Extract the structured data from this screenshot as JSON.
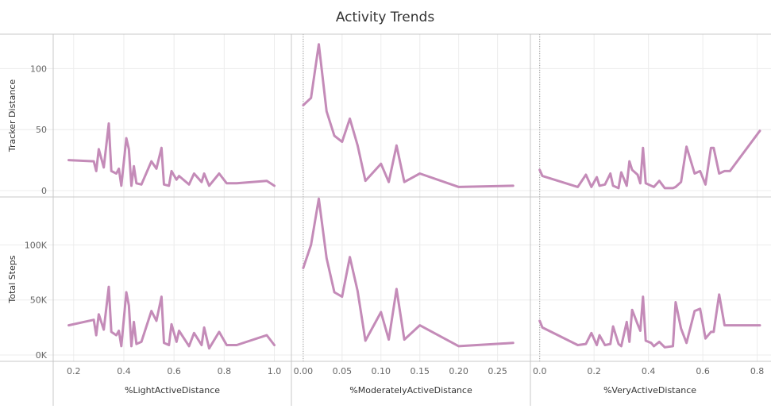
{
  "chart_data": {
    "type": "line",
    "title": "Activity Trends",
    "line_color": "#C48BB8",
    "grid": true,
    "rows": [
      {
        "label": "Tracker Distance",
        "key": "tracker_distance",
        "ylim": [
          0,
          125
        ],
        "ticks": [
          {
            "v": 0,
            "label": "0"
          },
          {
            "v": 50,
            "label": "50"
          },
          {
            "v": 100,
            "label": "100"
          }
        ]
      },
      {
        "label": "Total Steps",
        "key": "total_steps",
        "ylim": [
          0,
          140000
        ],
        "ticks": [
          {
            "v": 0,
            "label": "0K"
          },
          {
            "v": 50000,
            "label": "50K"
          },
          {
            "v": 100000,
            "label": "100K"
          }
        ]
      }
    ],
    "columns": [
      {
        "xlabel": "%LightActiveDistance",
        "xlim": [
          0.15,
          1.03
        ],
        "ticks": [
          {
            "v": 0.2,
            "label": "0.2"
          },
          {
            "v": 0.4,
            "label": "0.4"
          },
          {
            "v": 0.6,
            "label": "0.6"
          },
          {
            "v": 0.8,
            "label": "0.8"
          },
          {
            "v": 1.0,
            "label": "1.0"
          }
        ],
        "zero_line": false,
        "x": [
          0.18,
          0.28,
          0.29,
          0.3,
          0.32,
          0.34,
          0.35,
          0.37,
          0.38,
          0.39,
          0.41,
          0.42,
          0.43,
          0.44,
          0.45,
          0.47,
          0.51,
          0.53,
          0.55,
          0.56,
          0.58,
          0.59,
          0.61,
          0.62,
          0.66,
          0.68,
          0.71,
          0.72,
          0.74,
          0.78,
          0.81,
          0.85,
          0.97,
          1.0
        ],
        "tracker_distance": [
          25,
          24,
          16,
          34,
          19,
          55,
          16,
          14,
          18,
          4,
          43,
          34,
          4,
          20,
          6,
          5,
          24,
          18,
          35,
          5,
          4,
          16,
          9,
          12,
          5,
          14,
          7,
          14,
          4,
          14,
          6,
          6,
          8,
          4
        ],
        "total_steps": [
          27000,
          32000,
          18000,
          37000,
          23000,
          62000,
          21000,
          18000,
          22000,
          8000,
          57000,
          45000,
          8000,
          30000,
          10000,
          12000,
          40000,
          31000,
          53000,
          11000,
          9000,
          28000,
          12000,
          22000,
          8000,
          20000,
          9000,
          25000,
          6000,
          21000,
          9000,
          9000,
          18000,
          9000
        ]
      },
      {
        "xlabel": "%ModeratelyActiveDistance",
        "xlim": [
          -0.005,
          0.28
        ],
        "ticks": [
          {
            "v": 0.0,
            "label": "0.00"
          },
          {
            "v": 0.05,
            "label": "0.05"
          },
          {
            "v": 0.1,
            "label": "0.10"
          },
          {
            "v": 0.15,
            "label": "0.15"
          },
          {
            "v": 0.2,
            "label": "0.20"
          },
          {
            "v": 0.25,
            "label": "0.25"
          }
        ],
        "zero_line": true,
        "x": [
          0.0,
          0.01,
          0.02,
          0.03,
          0.04,
          0.05,
          0.06,
          0.07,
          0.08,
          0.1,
          0.11,
          0.12,
          0.13,
          0.15,
          0.2,
          0.27
        ],
        "tracker_distance": [
          70,
          76,
          120,
          65,
          45,
          40,
          59,
          37,
          8,
          22,
          7,
          37,
          7,
          14,
          3,
          4
        ],
        "total_steps": [
          79000,
          100000,
          142000,
          88000,
          57000,
          53000,
          89000,
          58000,
          13000,
          39000,
          14000,
          60000,
          14000,
          27000,
          8000,
          11000
        ]
      },
      {
        "xlabel": "%VeryActiveDistance",
        "xlim": [
          -0.005,
          0.81
        ],
        "ticks": [
          {
            "v": 0.0,
            "label": "0.0"
          },
          {
            "v": 0.2,
            "label": "0.2"
          },
          {
            "v": 0.4,
            "label": "0.4"
          },
          {
            "v": 0.6,
            "label": "0.6"
          },
          {
            "v": 0.8,
            "label": "0.8"
          }
        ],
        "zero_line": true,
        "x": [
          0.0,
          0.01,
          0.14,
          0.17,
          0.19,
          0.21,
          0.22,
          0.24,
          0.26,
          0.27,
          0.29,
          0.3,
          0.32,
          0.33,
          0.34,
          0.36,
          0.37,
          0.38,
          0.39,
          0.41,
          0.42,
          0.44,
          0.46,
          0.49,
          0.5,
          0.52,
          0.54,
          0.57,
          0.59,
          0.61,
          0.63,
          0.64,
          0.66,
          0.68,
          0.7,
          0.81
        ],
        "tracker_distance": [
          17,
          12,
          3,
          13,
          3,
          11,
          4,
          5,
          14,
          4,
          2,
          15,
          4,
          24,
          17,
          13,
          6,
          35,
          6,
          4,
          3,
          8,
          2,
          2,
          3,
          7,
          36,
          14,
          16,
          5,
          35,
          35,
          14,
          16,
          16,
          49
        ],
        "total_steps": [
          31000,
          25000,
          9000,
          10000,
          20000,
          9000,
          18000,
          9000,
          10000,
          26000,
          10000,
          8000,
          30000,
          12000,
          41000,
          28000,
          22000,
          53000,
          13000,
          11000,
          8000,
          12000,
          7000,
          8000,
          48000,
          24000,
          11000,
          40000,
          42000,
          15000,
          21000,
          21000,
          55000,
          27000,
          27000,
          27000
        ]
      }
    ]
  }
}
